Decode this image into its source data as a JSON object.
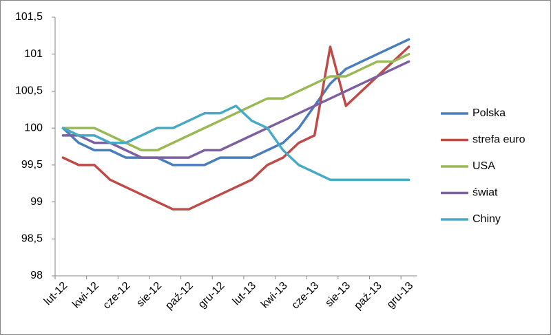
{
  "chart_data": {
    "type": "line",
    "categories": [
      "lut-12",
      null,
      "kwi-12",
      null,
      "cze-12",
      null,
      "sie-12",
      null,
      "paź-12",
      null,
      "gru-12",
      null,
      "lut-13",
      null,
      "kwi-13",
      null,
      "cze-13",
      null,
      "sie-13",
      null,
      "paź-13",
      null,
      "gru-13"
    ],
    "series": [
      {
        "name": "Polska",
        "color": "#4a7ebb",
        "values": [
          100,
          99.8,
          99.7,
          99.7,
          99.6,
          99.6,
          99.6,
          99.5,
          99.5,
          99.5,
          99.6,
          99.6,
          99.6,
          99.7,
          99.8,
          100,
          100.3,
          100.6,
          100.8,
          100.9,
          101,
          101.1,
          101.2
        ]
      },
      {
        "name": "strefa euro",
        "color": "#be4b48",
        "values": [
          99.6,
          99.5,
          99.5,
          99.3,
          99.2,
          99.1,
          99.0,
          98.9,
          98.9,
          99.0,
          99.1,
          99.2,
          99.3,
          99.5,
          99.6,
          99.8,
          99.9,
          101.1,
          100.3,
          100.5,
          100.7,
          100.9,
          101.1
        ]
      },
      {
        "name": "USA",
        "color": "#98b954",
        "values": [
          100,
          100,
          100,
          99.9,
          99.8,
          99.7,
          99.7,
          99.8,
          99.9,
          100,
          100.1,
          100.2,
          100.3,
          100.4,
          100.4,
          100.5,
          100.6,
          100.7,
          100.7,
          100.8,
          100.9,
          100.9,
          101
        ]
      },
      {
        "name": "świat",
        "color": "#7d60a0",
        "values": [
          99.9,
          99.9,
          99.8,
          99.8,
          99.7,
          99.6,
          99.6,
          99.6,
          99.6,
          99.7,
          99.7,
          99.8,
          99.9,
          100,
          100.1,
          100.2,
          100.3,
          100.4,
          100.5,
          100.6,
          100.7,
          100.8,
          100.9
        ]
      },
      {
        "name": "Chiny",
        "color": "#46aac5",
        "values": [
          100,
          99.9,
          99.9,
          99.8,
          99.8,
          99.9,
          100,
          100,
          100.1,
          100.2,
          100.2,
          100.3,
          100.1,
          100,
          99.7,
          99.5,
          99.4,
          99.3,
          99.3,
          99.3,
          99.3,
          99.3,
          99.3
        ]
      }
    ],
    "ylim": [
      98,
      101.5
    ],
    "yticks": [
      98,
      {
        "value": 98.5,
        "label": "98,5"
      },
      99,
      {
        "value": 99.5,
        "label": "99,5"
      },
      100,
      {
        "value": 100.5,
        "label": "100,5"
      },
      101,
      {
        "value": 101.5,
        "label": "101,5"
      }
    ],
    "grid": false,
    "legend": "right"
  }
}
